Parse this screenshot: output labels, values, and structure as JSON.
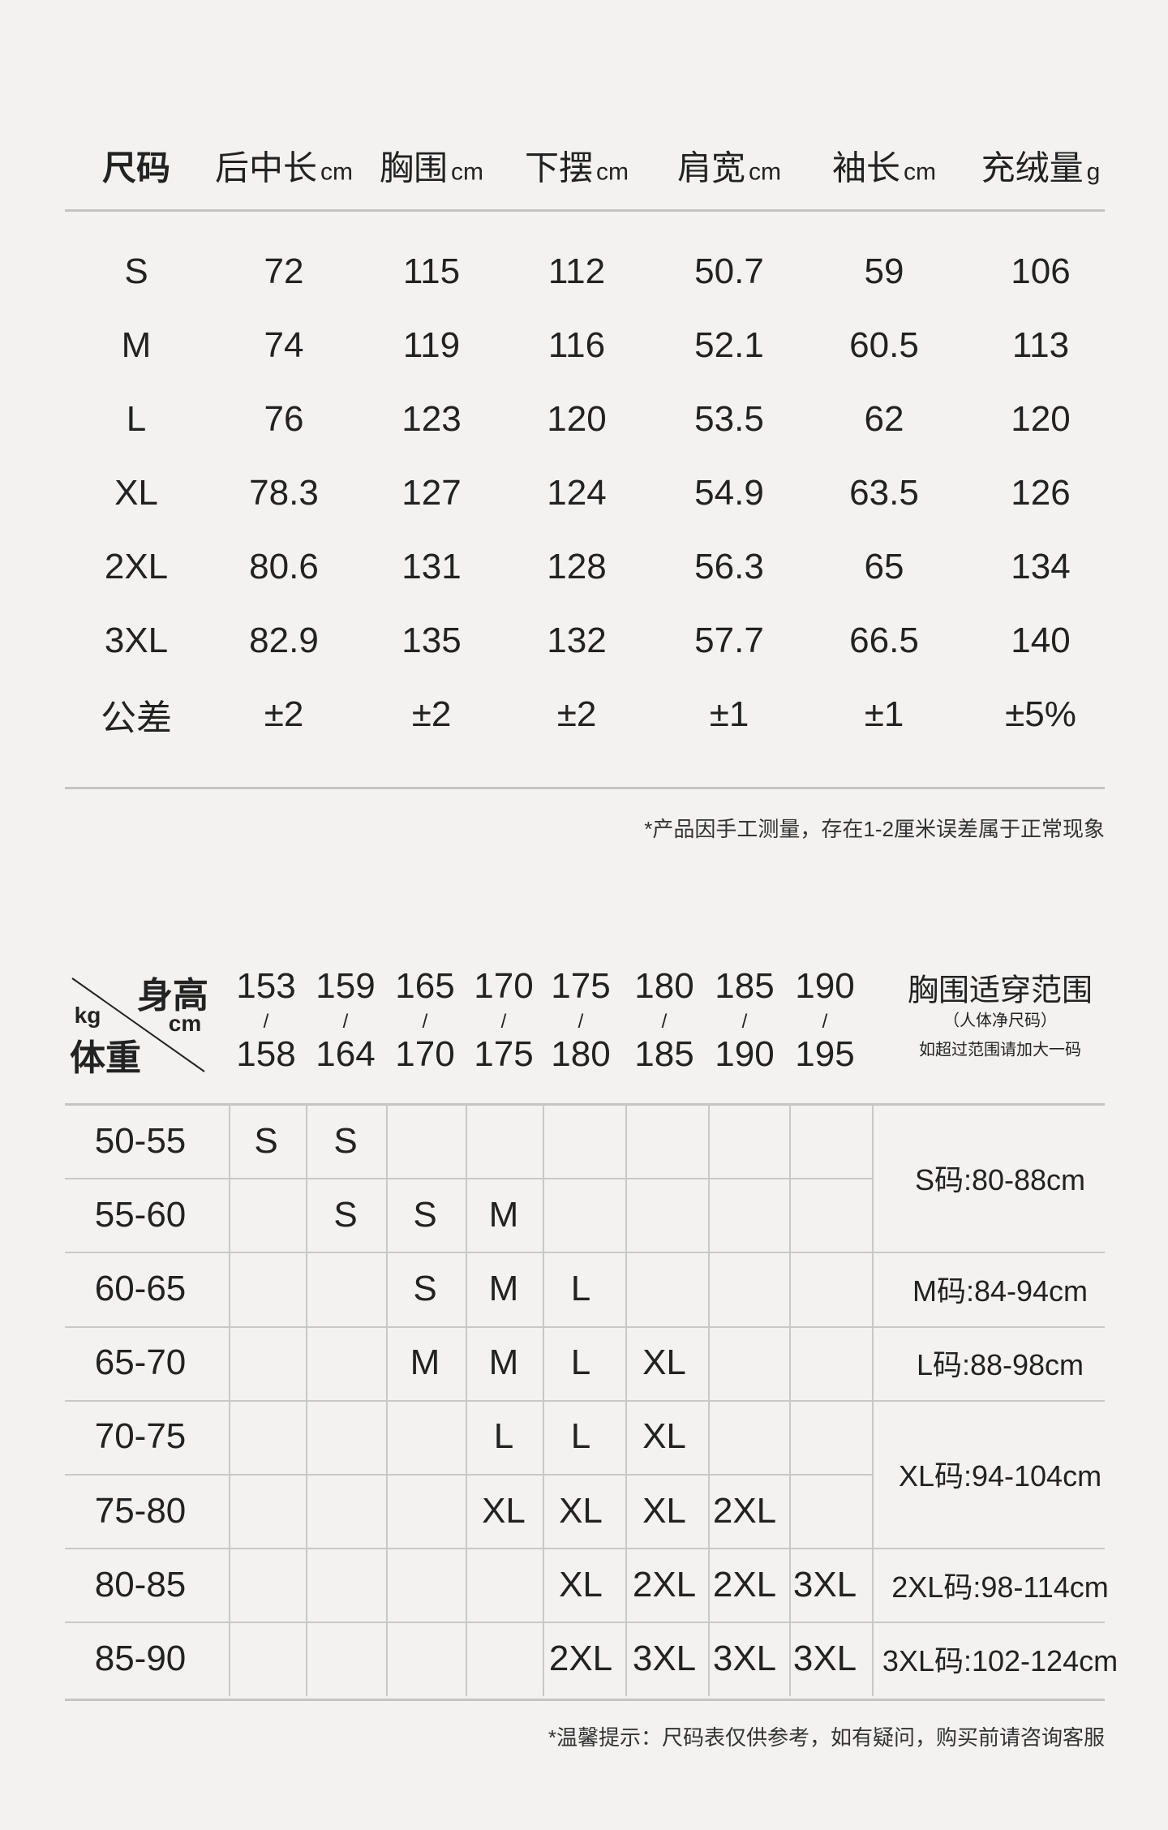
{
  "size_table": {
    "headers": [
      {
        "label": "尺码",
        "unit": ""
      },
      {
        "label": "后中长",
        "unit": "cm"
      },
      {
        "label": "胸围",
        "unit": "cm"
      },
      {
        "label": "下摆",
        "unit": "cm"
      },
      {
        "label": "肩宽",
        "unit": "cm"
      },
      {
        "label": "袖长",
        "unit": "cm"
      },
      {
        "label": "充绒量",
        "unit": "g"
      }
    ],
    "rows": [
      [
        "S",
        "72",
        "115",
        "112",
        "50.7",
        "59",
        "106"
      ],
      [
        "M",
        "74",
        "119",
        "116",
        "52.1",
        "60.5",
        "113"
      ],
      [
        "L",
        "76",
        "123",
        "120",
        "53.5",
        "62",
        "120"
      ],
      [
        "XL",
        "78.3",
        "127",
        "124",
        "54.9",
        "63.5",
        "126"
      ],
      [
        "2XL",
        "80.6",
        "131",
        "128",
        "56.3",
        "65",
        "134"
      ],
      [
        "3XL",
        "82.9",
        "135",
        "132",
        "57.7",
        "66.5",
        "140"
      ],
      [
        "公差",
        "±2",
        "±2",
        "±2",
        "±1",
        "±1",
        "±5%"
      ]
    ],
    "note": "*产品因手工测量，存在1-2厘米误差属于正常现象"
  },
  "recommend_table": {
    "corner": {
      "height_label": "身高",
      "height_unit": "cm",
      "weight_label": "体重",
      "weight_unit": "kg"
    },
    "height_ranges": [
      [
        "153",
        "158"
      ],
      [
        "159",
        "164"
      ],
      [
        "165",
        "170"
      ],
      [
        "170",
        "175"
      ],
      [
        "175",
        "180"
      ],
      [
        "180",
        "185"
      ],
      [
        "185",
        "190"
      ],
      [
        "190",
        "195"
      ]
    ],
    "separator": "/",
    "chest_header": {
      "title": "胸围适穿范围",
      "subtitle": "（人体净尺码）",
      "hint": "如超过范围请加大一码"
    },
    "rows": [
      {
        "weight": "50-55",
        "sizes": [
          "S",
          "S",
          "",
          "",
          "",
          "",
          "",
          ""
        ]
      },
      {
        "weight": "55-60",
        "sizes": [
          "",
          "S",
          "S",
          "M",
          "",
          "",
          "",
          ""
        ]
      },
      {
        "weight": "60-65",
        "sizes": [
          "",
          "",
          "S",
          "M",
          "L",
          "",
          "",
          ""
        ]
      },
      {
        "weight": "65-70",
        "sizes": [
          "",
          "",
          "M",
          "M",
          "L",
          "XL",
          "",
          ""
        ]
      },
      {
        "weight": "70-75",
        "sizes": [
          "",
          "",
          "",
          "L",
          "L",
          "XL",
          "",
          ""
        ]
      },
      {
        "weight": "75-80",
        "sizes": [
          "",
          "",
          "",
          "XL",
          "XL",
          "XL",
          "2XL",
          ""
        ]
      },
      {
        "weight": "80-85",
        "sizes": [
          "",
          "",
          "",
          "",
          "XL",
          "2XL",
          "2XL",
          "3XL"
        ]
      },
      {
        "weight": "85-90",
        "sizes": [
          "",
          "",
          "",
          "",
          "2XL",
          "3XL",
          "3XL",
          "3XL"
        ]
      }
    ],
    "chest_ranges": [
      {
        "text": "S码:80-88cm",
        "rows": [
          0,
          1
        ]
      },
      {
        "text": "M码:84-94cm",
        "rows": [
          2,
          2
        ]
      },
      {
        "text": "L码:88-98cm",
        "rows": [
          3,
          3
        ]
      },
      {
        "text": "XL码:94-104cm",
        "rows": [
          4,
          5
        ]
      },
      {
        "text": "2XL码:98-114cm",
        "rows": [
          6,
          6
        ]
      },
      {
        "text": "3XL码:102-124cm",
        "rows": [
          7,
          7
        ]
      }
    ],
    "note": "*温馨提示：尺码表仅供参考，如有疑问，购买前请咨询客服"
  }
}
